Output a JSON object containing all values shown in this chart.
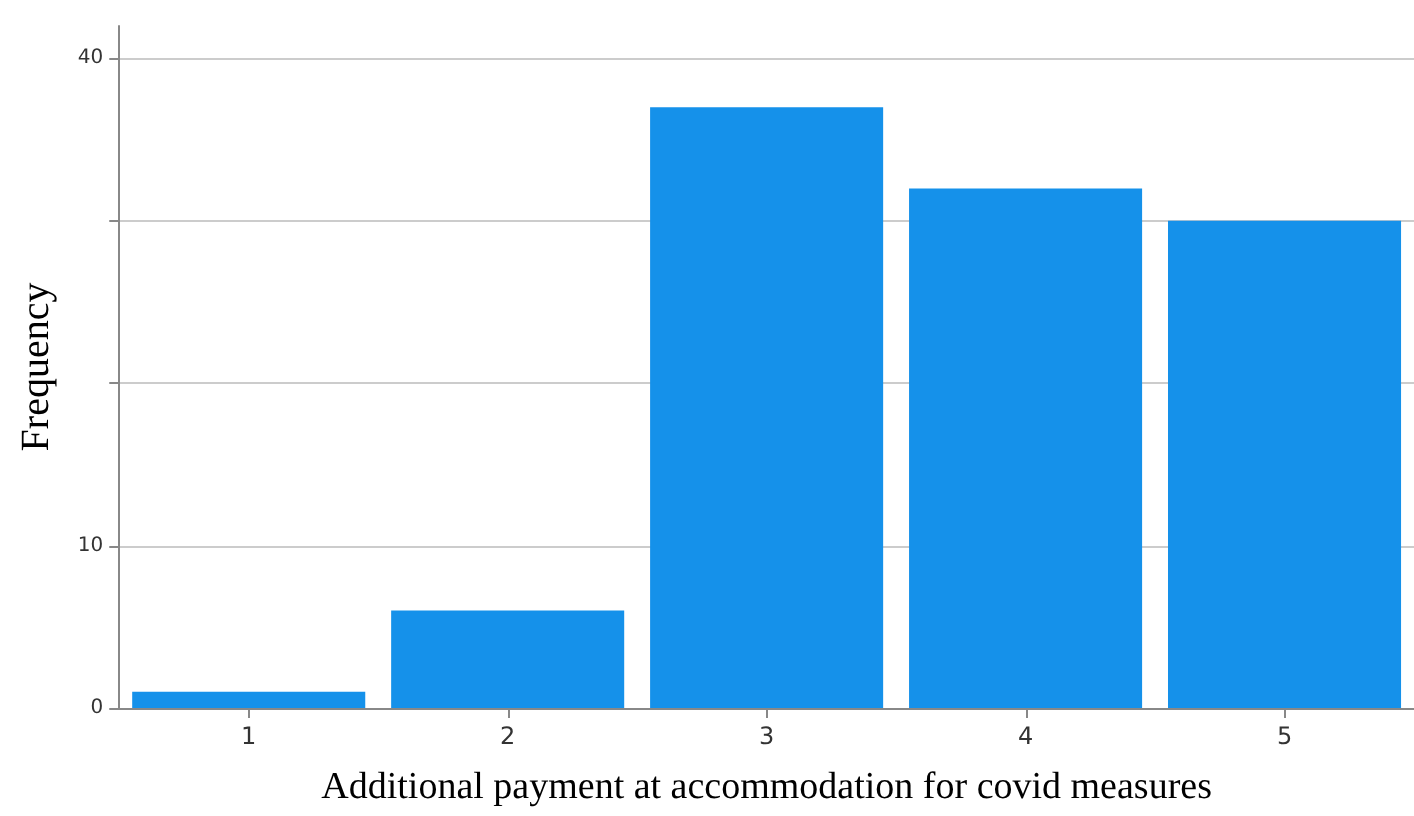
{
  "chart_data": {
    "type": "bar",
    "xlabel": "Additional payment at accommodation for covid measures",
    "ylabel": "Frequency",
    "categories": [
      "1",
      "2",
      "3",
      "4",
      "5"
    ],
    "values": [
      1,
      6,
      37,
      32,
      30
    ],
    "color": "#1591ea",
    "ylim": [
      0,
      42
    ],
    "yticks": [
      0,
      10,
      {
        "value": 20,
        "label": null
      },
      {
        "value": 30,
        "label": null
      },
      40
    ],
    "grid": "y"
  }
}
